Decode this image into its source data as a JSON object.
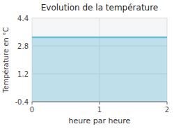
{
  "chart_data": {
    "type": "area",
    "title": "Evolution de la température",
    "x_label": "heure par heure",
    "y_label": "Température en °C",
    "x": [
      0,
      2
    ],
    "values": [
      3.3,
      3.3
    ],
    "color": "#5bb8d4",
    "xlim": [
      0,
      2
    ],
    "ylim": [
      -0.4,
      4.4
    ],
    "xticks": [
      0,
      1,
      2
    ],
    "yticks": [
      -0.4,
      1.2,
      2.8,
      4.4
    ],
    "grid": true
  }
}
